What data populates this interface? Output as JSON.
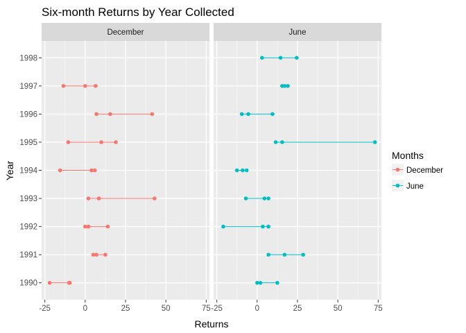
{
  "chart_data": {
    "type": "line",
    "title": "Six-month Returns by Year Collected",
    "xlabel": "Returns",
    "ylabel": "Year",
    "xlim": [
      -27,
      77
    ],
    "x_ticks": [
      -25,
      0,
      25,
      50,
      75
    ],
    "x_tick_labels": [
      "-25",
      "0",
      "25",
      "50",
      "75"
    ],
    "categories": [
      "1990",
      "1991",
      "1992",
      "1993",
      "1994",
      "1995",
      "1996",
      "1997",
      "1998"
    ],
    "legend": {
      "title": "Months",
      "placement": "right"
    },
    "grid": true,
    "facets": [
      {
        "label": "December"
      },
      {
        "label": "June"
      }
    ],
    "series": [
      {
        "name": "December",
        "color": "#F8766D",
        "facet": 0,
        "points": [
          {
            "year": "1990",
            "values": [
              -22,
              -10,
              -9.5
            ]
          },
          {
            "year": "1991",
            "values": [
              5,
              7,
              12.5
            ]
          },
          {
            "year": "1992",
            "values": [
              0,
              2,
              14
            ]
          },
          {
            "year": "1993",
            "values": [
              2,
              8.5,
              43
            ]
          },
          {
            "year": "1994",
            "values": [
              -15.5,
              4,
              6
            ]
          },
          {
            "year": "1995",
            "values": [
              -10.5,
              10,
              19
            ]
          },
          {
            "year": "1996",
            "values": [
              7,
              15.5,
              41.5
            ]
          },
          {
            "year": "1997",
            "values": [
              -13.5,
              0,
              6.5
            ]
          }
        ]
      },
      {
        "name": "June",
        "color": "#00BFC4",
        "facet": 1,
        "points": [
          {
            "year": "1990",
            "values": [
              0,
              2,
              12.5
            ]
          },
          {
            "year": "1991",
            "values": [
              7,
              17,
              28.5
            ]
          },
          {
            "year": "1992",
            "values": [
              -21,
              3.5,
              7
            ]
          },
          {
            "year": "1993",
            "values": [
              -7,
              4.5,
              7
            ]
          },
          {
            "year": "1994",
            "values": [
              -12.5,
              -9,
              -6.5
            ]
          },
          {
            "year": "1995",
            "values": [
              11.5,
              15.5,
              73
            ]
          },
          {
            "year": "1996",
            "values": [
              -9.5,
              -5.5,
              9.5
            ]
          },
          {
            "year": "1997",
            "values": [
              15.5,
              17,
              19
            ]
          },
          {
            "year": "1998",
            "values": [
              3,
              14.5,
              24.5
            ]
          }
        ]
      }
    ]
  }
}
